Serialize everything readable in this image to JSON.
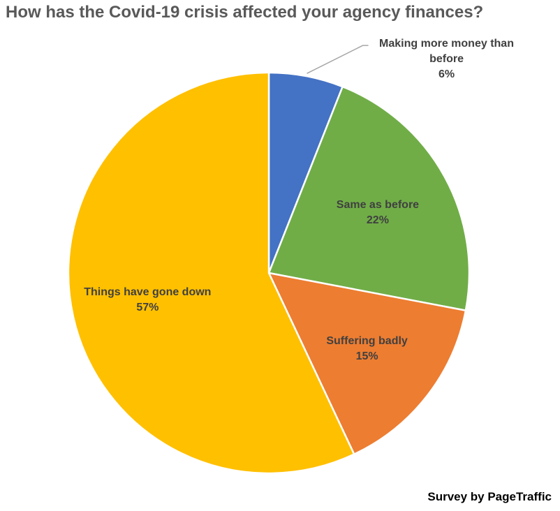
{
  "chart_data": {
    "type": "pie",
    "title": "How has the Covid-19 crisis affected your agency finances?",
    "categories": [
      "Making more money than before",
      "Same as before",
      "Suffering badly",
      "Things have gone down"
    ],
    "values": [
      6,
      22,
      15,
      57
    ],
    "value_labels": [
      "6%",
      "22%",
      "15%",
      "57%"
    ],
    "colors": [
      "#4472c4",
      "#70ad47",
      "#ed7d31",
      "#ffc000"
    ],
    "source": "Survey by PageTraffic"
  }
}
